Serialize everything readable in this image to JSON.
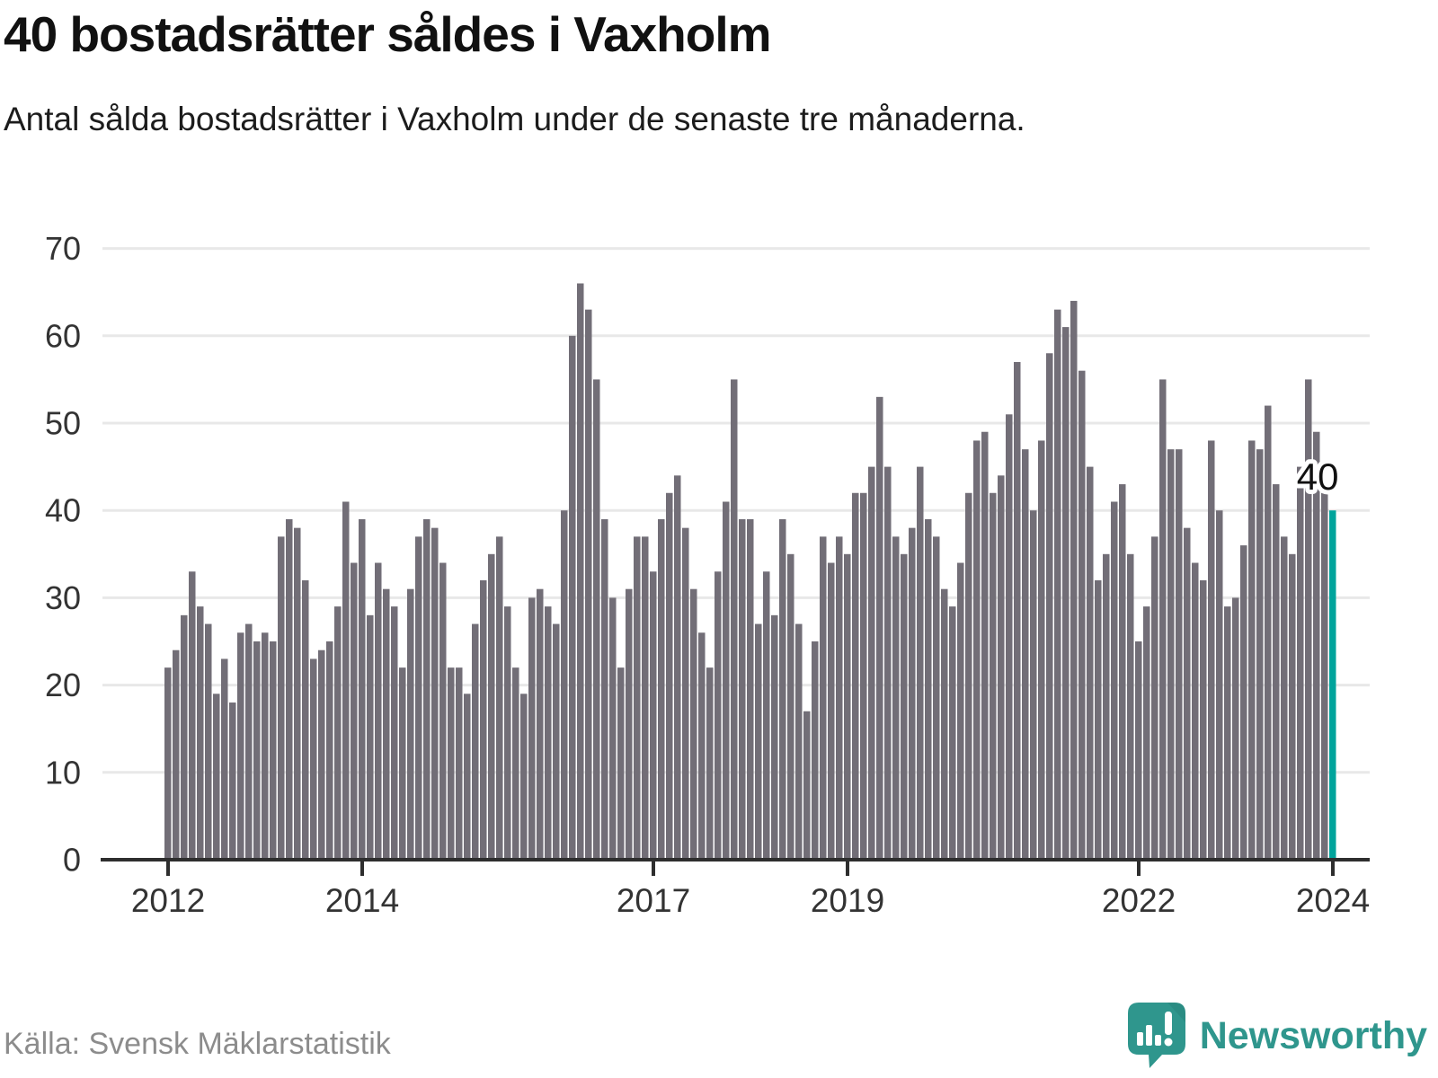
{
  "header": {
    "title": "40 bostadsrätter såldes i Vaxholm",
    "subtitle": "Antal sålda bostadsrätter i Vaxholm under de senaste tre månaderna."
  },
  "footer": {
    "source": "Källa: Svensk Mäklarstatistik",
    "brand": "Newsworthy",
    "logo_icon": "speech-bubble-bar-chart-icon"
  },
  "chart_data": {
    "type": "bar",
    "title": "40 bostadsrätter såldes i Vaxholm",
    "subtitle": "Antal sålda bostadsrätter i Vaxholm under de senaste tre månaderna.",
    "xlabel": "",
    "ylabel": "",
    "ylim": [
      0,
      70
    ],
    "yticks": [
      0,
      10,
      20,
      30,
      40,
      50,
      60,
      70
    ],
    "grid": "horizontal",
    "legend": "none",
    "start_year": 2012,
    "start_month": 1,
    "frequency": "monthly",
    "xticks": [
      {
        "label": "2012",
        "month_index": 0
      },
      {
        "label": "2014",
        "month_index": 24
      },
      {
        "label": "2017",
        "month_index": 60
      },
      {
        "label": "2019",
        "month_index": 84
      },
      {
        "label": "2022",
        "month_index": 120
      },
      {
        "label": "2024",
        "month_index": 144
      }
    ],
    "values": [
      22,
      24,
      28,
      33,
      29,
      27,
      19,
      23,
      18,
      26,
      27,
      25,
      26,
      25,
      37,
      39,
      38,
      32,
      23,
      24,
      25,
      29,
      41,
      34,
      39,
      28,
      34,
      31,
      29,
      22,
      31,
      37,
      39,
      38,
      34,
      22,
      22,
      19,
      27,
      32,
      35,
      37,
      29,
      22,
      19,
      30,
      31,
      29,
      27,
      40,
      60,
      66,
      63,
      55,
      39,
      30,
      22,
      31,
      37,
      37,
      33,
      39,
      42,
      44,
      38,
      31,
      26,
      22,
      33,
      41,
      55,
      39,
      39,
      27,
      33,
      28,
      39,
      35,
      27,
      17,
      25,
      37,
      34,
      37,
      35,
      42,
      42,
      45,
      53,
      45,
      37,
      35,
      38,
      45,
      39,
      37,
      31,
      29,
      34,
      42,
      48,
      49,
      42,
      44,
      51,
      57,
      47,
      40,
      48,
      58,
      63,
      61,
      64,
      56,
      45,
      32,
      35,
      41,
      43,
      35,
      25,
      29,
      37,
      55,
      47,
      47,
      38,
      34,
      32,
      48,
      40,
      29,
      30,
      36,
      48,
      47,
      52,
      43,
      37,
      35,
      45,
      55,
      49,
      42,
      40
    ],
    "highlight_last_bar": true,
    "annotation": {
      "text": "40",
      "value": 40
    },
    "colors": {
      "bar": "#726e77",
      "accent": "#00a49c",
      "grid": "#e8e8e8",
      "axis": "#2e2e2e",
      "tick_label": "#333333",
      "annotation_text": "#111111",
      "annotation_halo": "#ffffff",
      "source_text": "#8c8c8c",
      "brand_teal": "#2f968d",
      "logo_fold": "#27857c"
    }
  }
}
